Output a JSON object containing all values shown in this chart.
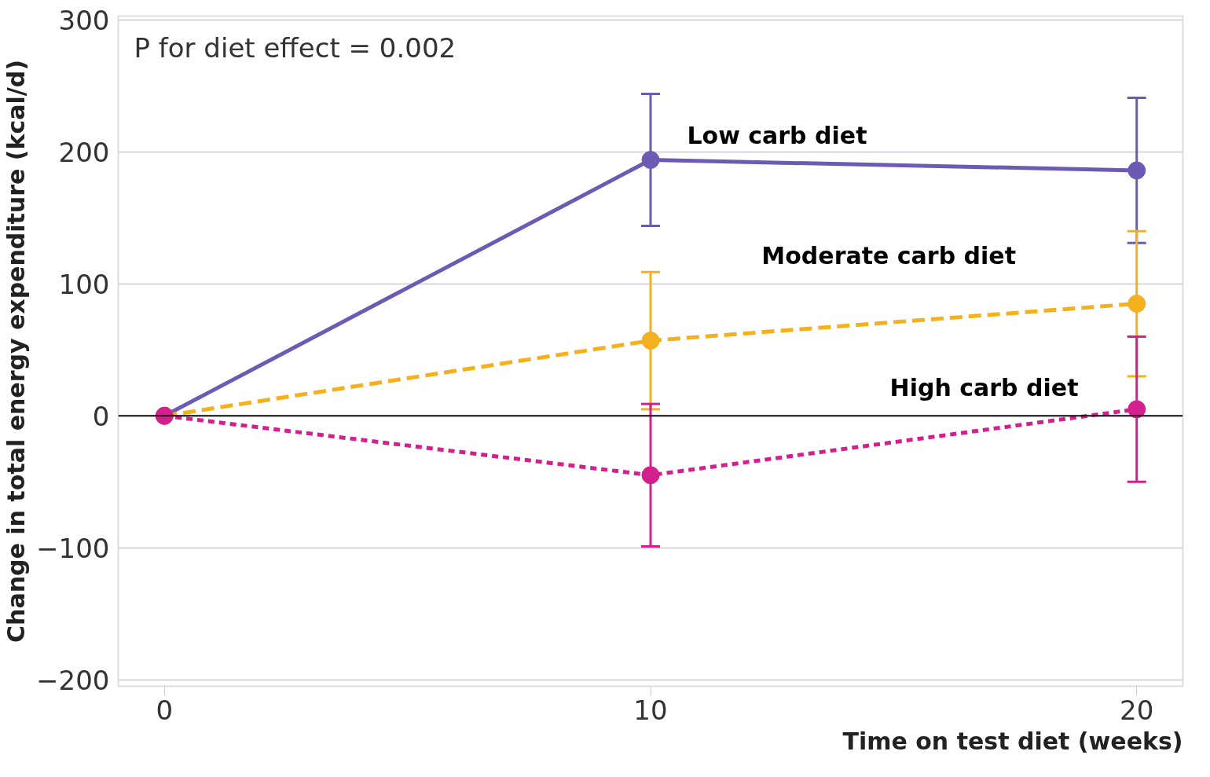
{
  "chart_data": {
    "type": "line",
    "xlabel": "Time on test diet (weeks)",
    "ylabel": "Change in total energy expenditure (kcal/d)",
    "annotations": [
      "P for diet effect = 0.002"
    ],
    "x": [
      0,
      10,
      20
    ],
    "xlim": [
      -0.95,
      20.95
    ],
    "xticks": [
      0,
      10,
      20
    ],
    "ylim": [
      -205,
      303
    ],
    "yticks": [
      -200,
      -100,
      0,
      100,
      200,
      300
    ],
    "grid": "y",
    "marker": "circle",
    "ref_lines": [
      {
        "axis": "y",
        "value": 0,
        "color": "#111111"
      }
    ],
    "series": [
      {
        "name": "Low carb diet",
        "color": "#6b5bb5",
        "line_style": "solid",
        "values": [
          0,
          194,
          186
        ],
        "errors": [
          null,
          50,
          55
        ]
      },
      {
        "name": "Moderate carb diet",
        "color": "#f5b01e",
        "line_style": "dashed",
        "values": [
          0,
          57,
          85
        ],
        "errors": [
          null,
          52,
          55
        ]
      },
      {
        "name": "High carb diet",
        "color": "#d4208e",
        "line_style": "dotted",
        "values": [
          0,
          -45,
          5
        ],
        "errors": [
          null,
          54,
          55
        ]
      }
    ]
  }
}
